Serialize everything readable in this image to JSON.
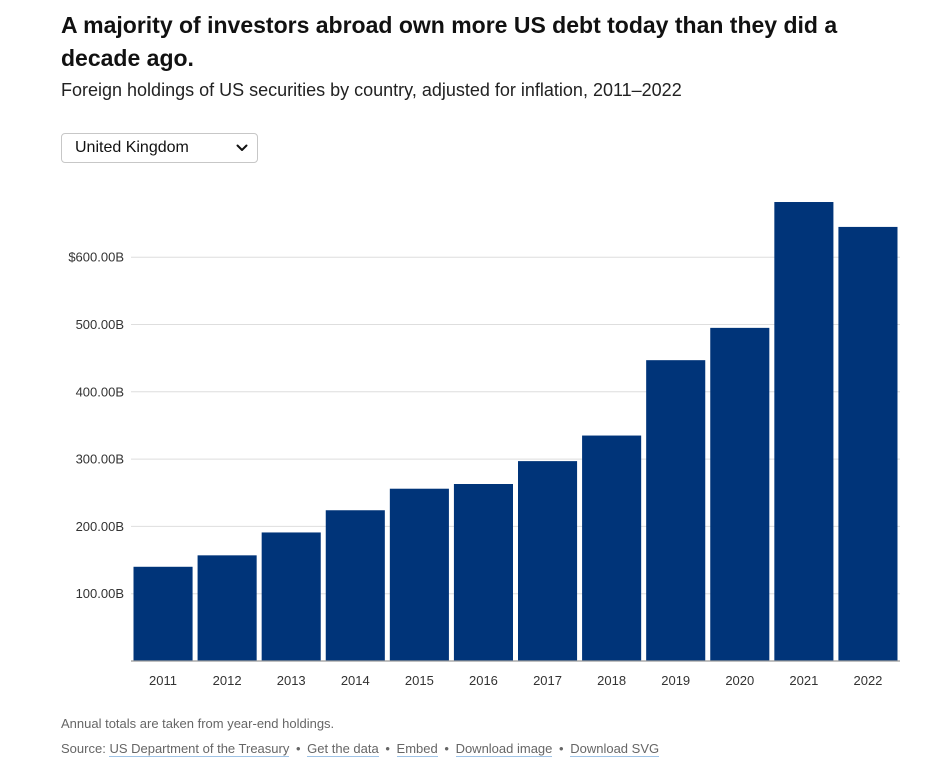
{
  "title": "A majority of investors abroad own more US debt today than they did a decade ago.",
  "subtitle": "Foreign holdings of US securities by country, adjusted for inflation, 2011–2022",
  "country_select": {
    "selected": "United Kingdom",
    "icon": "chevron-down-icon"
  },
  "note": "Annual totals are taken from year-end holdings.",
  "source": {
    "label": "Source:",
    "links": [
      "US Department of the Treasury",
      "Get the data",
      "Embed",
      "Download image",
      "Download SVG"
    ],
    "separator": "•"
  },
  "colors": {
    "bar": "#003479",
    "grid": "#dedede"
  },
  "chart_data": {
    "type": "bar",
    "categories": [
      "2011",
      "2012",
      "2013",
      "2014",
      "2015",
      "2016",
      "2017",
      "2018",
      "2019",
      "2020",
      "2021",
      "2022"
    ],
    "values": [
      140,
      157,
      191,
      224,
      256,
      263,
      297,
      335,
      447,
      495,
      682,
      645
    ],
    "unit": "B",
    "ylim": [
      0,
      700
    ],
    "yticks": [
      100,
      200,
      300,
      400,
      500,
      600
    ],
    "ytick_labels": [
      "100.00B",
      "200.00B",
      "300.00B",
      "400.00B",
      "500.00B",
      "$600.00B"
    ],
    "grid": true,
    "legend": "none"
  }
}
